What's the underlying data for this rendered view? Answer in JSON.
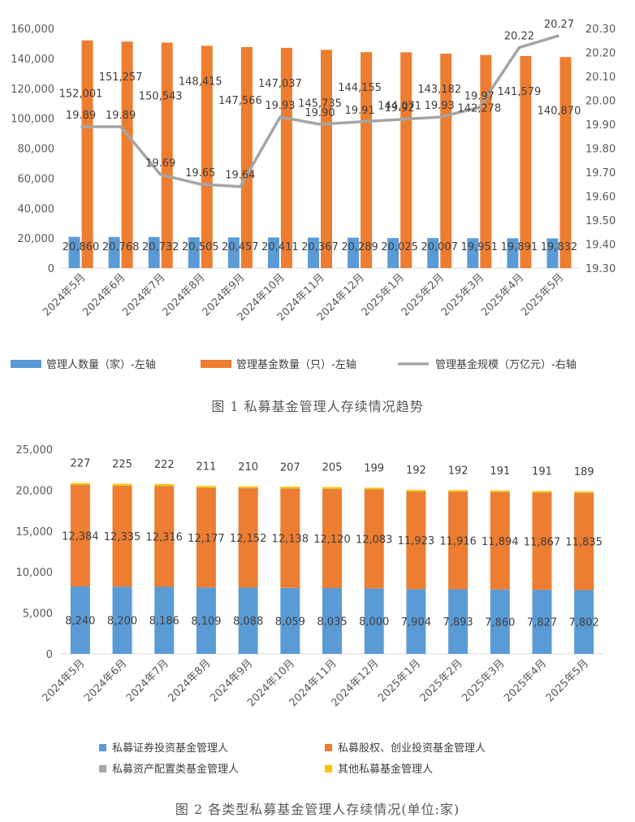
{
  "colors": {
    "blue": "#5b9bd5",
    "orange": "#ed7d31",
    "gray": "#a5a5a5",
    "yellow": "#ffc000",
    "axis": "#d9d9d9",
    "text": "#404040"
  },
  "figure1": {
    "caption": "图 1  私募基金管理人存续情况趋势",
    "legend": [
      "管理人数量（家）-左轴",
      "管理基金数量（只）-左轴",
      "管理基金规模（万亿元）-右轴"
    ]
  },
  "figure2": {
    "caption": "图 2  各类型私募基金管理人存续情况(单位:家)",
    "legend": [
      "私募证券投资基金管理人",
      "私募股权、创业投资基金管理人",
      "私募资产配置类基金管理人",
      "其他私募基金管理人"
    ]
  },
  "chart_data": [
    {
      "type": "bar",
      "categories": [
        "2024年5月",
        "2024年6月",
        "2024年7月",
        "2024年8月",
        "2024年9月",
        "2024年10月",
        "2024年11月",
        "2024年12月",
        "2025年1月",
        "2025年2月",
        "2025年3月",
        "2025年4月",
        "2025年5月"
      ],
      "series": [
        {
          "name": "管理人数量（家）-左轴",
          "type": "bar",
          "axis": "left",
          "values": [
            20860,
            20768,
            20732,
            20505,
            20457,
            20411,
            20367,
            20289,
            20025,
            20007,
            19951,
            19891,
            19832
          ],
          "labels": [
            "20,860",
            "20,768",
            "20,732",
            "20,505",
            "20,457",
            "20,411",
            "20,367",
            "20,289",
            "20,025",
            "20,007",
            "19,951",
            "19,891",
            "19,832"
          ]
        },
        {
          "name": "管理基金数量（只）-左轴",
          "type": "bar",
          "axis": "left",
          "values": [
            152001,
            151257,
            150543,
            148415,
            147566,
            147037,
            145735,
            144155,
            144071,
            143182,
            142278,
            141579,
            140870
          ],
          "labels": [
            "152,001",
            "151,257",
            "150,543",
            "148,415",
            "147,566",
            "147,037",
            "145,735",
            "144,155",
            "144,071",
            "143,182",
            "142,278",
            "141,579",
            "140,870"
          ]
        },
        {
          "name": "管理基金规模（万亿元）-右轴",
          "type": "line",
          "axis": "right",
          "values": [
            19.89,
            19.89,
            19.69,
            19.65,
            19.64,
            19.93,
            19.9,
            19.91,
            19.92,
            19.93,
            19.97,
            20.22,
            20.27
          ],
          "labels": [
            "19.89",
            "19.89",
            "19.69",
            "19.65",
            "19.64",
            "19.93",
            "19.90",
            "19.91",
            "19.92",
            "19.93",
            "19.97",
            "20.22",
            "20.27"
          ]
        }
      ],
      "ylim": [
        0,
        160000
      ],
      "yticks": [
        "0",
        "20,000",
        "40,000",
        "60,000",
        "80,000",
        "100,000",
        "120,000",
        "140,000",
        "160,000"
      ],
      "y2lim": [
        19.3,
        20.3
      ],
      "y2ticks": [
        "19.30",
        "19.40",
        "19.50",
        "19.60",
        "19.70",
        "19.80",
        "19.90",
        "20.00",
        "20.10",
        "20.20",
        "20.30"
      ],
      "legend_position": "bottom",
      "grid": false
    },
    {
      "type": "bar",
      "stacked": true,
      "categories": [
        "2024年5月",
        "2024年6月",
        "2024年7月",
        "2024年8月",
        "2024年9月",
        "2024年10月",
        "2024年11月",
        "2024年12月",
        "2025年1月",
        "2025年2月",
        "2025年3月",
        "2025年4月",
        "2025年5月"
      ],
      "series": [
        {
          "name": "私募证券投资基金管理人",
          "values": [
            8240,
            8200,
            8186,
            8109,
            8088,
            8059,
            8035,
            8000,
            7904,
            7893,
            7860,
            7827,
            7802
          ],
          "labels": [
            "8,240",
            "8,200",
            "8,186",
            "8,109",
            "8,088",
            "8,059",
            "8,035",
            "8,000",
            "7,904",
            "7,893",
            "7,860",
            "7,827",
            "7,802"
          ]
        },
        {
          "name": "私募股权、创业投资基金管理人",
          "values": [
            12384,
            12335,
            12316,
            12177,
            12152,
            12138,
            12120,
            12083,
            11923,
            11916,
            11894,
            11867,
            11835
          ],
          "labels": [
            "12,384",
            "12,335",
            "12,316",
            "12,177",
            "12,152",
            "12,138",
            "12,120",
            "12,083",
            "11,923",
            "11,916",
            "11,894",
            "11,867",
            "11,835"
          ]
        },
        {
          "name": "私募资产配置类基金管理人",
          "values": [
            9,
            9,
            8,
            8,
            7,
            7,
            7,
            7,
            6,
            6,
            6,
            6,
            6
          ],
          "labels": []
        },
        {
          "name": "其他私募基金管理人",
          "values": [
            227,
            225,
            222,
            211,
            210,
            207,
            205,
            199,
            192,
            192,
            191,
            191,
            189
          ],
          "labels": [
            "227",
            "225",
            "222",
            "211",
            "210",
            "207",
            "205",
            "199",
            "192",
            "192",
            "191",
            "191",
            "189"
          ]
        }
      ],
      "ylim": [
        0,
        25000
      ],
      "yticks": [
        "0",
        "5,000",
        "10,000",
        "15,000",
        "20,000",
        "25,000"
      ],
      "legend_position": "bottom",
      "grid": false
    }
  ]
}
